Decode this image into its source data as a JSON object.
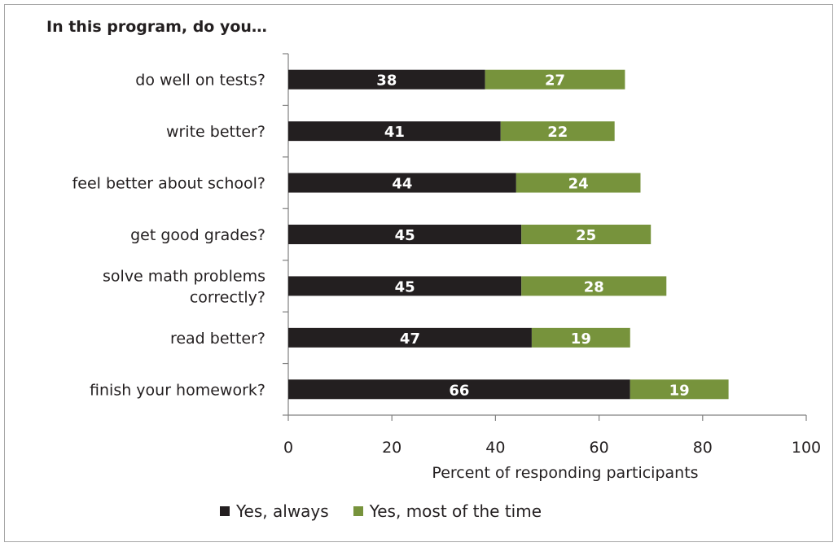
{
  "chart_data": {
    "type": "bar",
    "orientation": "horizontal",
    "stacked": true,
    "title": "In this program, do you…",
    "xlabel": "Percent of responding participants",
    "ylabel": "",
    "xlim": [
      0,
      100
    ],
    "xticks": [
      0,
      20,
      40,
      60,
      80,
      100
    ],
    "grid": false,
    "legend_position": "bottom",
    "categories": [
      "do well on tests?",
      "write better?",
      "feel better about school?",
      "get good grades?",
      "solve math problems correctly?",
      "read better?",
      "finish your homework?"
    ],
    "category_lines": [
      [
        "do well on tests?"
      ],
      [
        "write better?"
      ],
      [
        "feel better about school?"
      ],
      [
        "get good grades?"
      ],
      [
        "solve math problems",
        "correctly?"
      ],
      [
        "read better?"
      ],
      [
        "finish your homework?"
      ]
    ],
    "series": [
      {
        "name": "Yes, always",
        "color": "#231f20",
        "values": [
          38,
          41,
          44,
          45,
          45,
          47,
          66
        ]
      },
      {
        "name": "Yes, most of the time",
        "color": "#77933c",
        "values": [
          27,
          22,
          24,
          25,
          28,
          19,
          19
        ]
      }
    ]
  }
}
